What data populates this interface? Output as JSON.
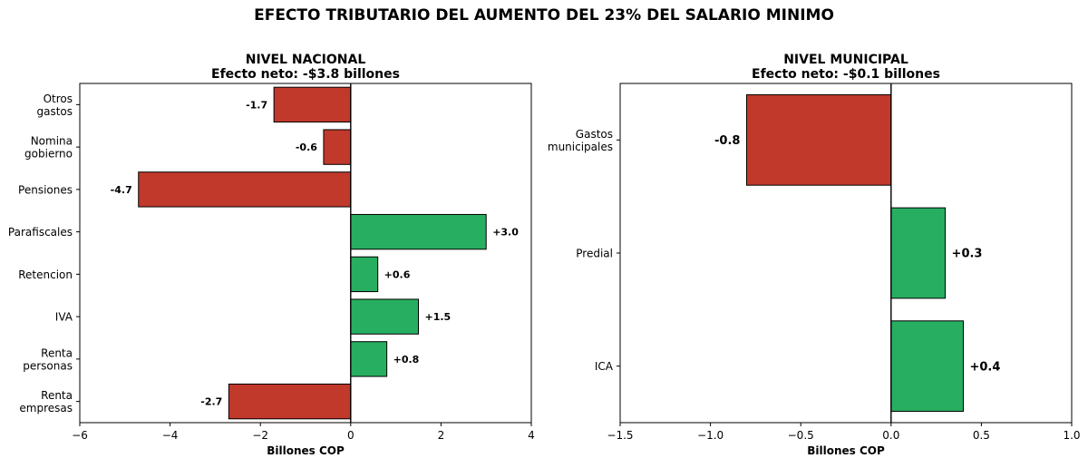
{
  "figure_title": "EFECTO TRIBUTARIO DEL AUMENTO DEL 23% DEL SALARIO MINIMO",
  "colors": {
    "positive": "#27ae60",
    "negative": "#c0392b",
    "edge": "#000000"
  },
  "chart_data": [
    {
      "type": "bar",
      "orientation": "horizontal",
      "title": "NIVEL NACIONAL",
      "subtitle": "Efecto neto: -$3.8 billones",
      "xlabel": "Billones COP",
      "xlim": [
        -6,
        4
      ],
      "xticks": [
        -6,
        -4,
        -2,
        0,
        2,
        4
      ],
      "xtick_labels": [
        "−6",
        "−4",
        "−2",
        "0",
        "2",
        "4"
      ],
      "grid": false,
      "categories": [
        [
          "Otros",
          "gastos"
        ],
        [
          "Nomina",
          "gobierno"
        ],
        [
          "Pensiones"
        ],
        [
          "Parafiscales"
        ],
        [
          "Retencion"
        ],
        [
          "IVA"
        ],
        [
          "Renta",
          "personas"
        ],
        [
          "Renta",
          "empresas"
        ]
      ],
      "values": [
        -1.7,
        -0.6,
        -4.7,
        3.0,
        0.6,
        1.5,
        0.8,
        -2.7
      ],
      "value_labels": [
        "-1.7",
        "-0.6",
        "-4.7",
        "+3.0",
        "+0.6",
        "+1.5",
        "+0.8",
        "-2.7"
      ]
    },
    {
      "type": "bar",
      "orientation": "horizontal",
      "title": "NIVEL MUNICIPAL",
      "subtitle": "Efecto neto: -$0.1 billones",
      "xlabel": "Billones COP",
      "xlim": [
        -1.5,
        1.0
      ],
      "xticks": [
        -1.5,
        -1.0,
        -0.5,
        0.0,
        0.5,
        1.0
      ],
      "xtick_labels": [
        "−1.5",
        "−1.0",
        "−0.5",
        "0.0",
        "0.5",
        "1.0"
      ],
      "grid": false,
      "categories": [
        [
          "Gastos",
          "municipales"
        ],
        [
          "Predial"
        ],
        [
          "ICA"
        ]
      ],
      "values": [
        -0.8,
        0.3,
        0.4
      ],
      "value_labels": [
        "-0.8",
        "+0.3",
        "+0.4"
      ]
    }
  ]
}
